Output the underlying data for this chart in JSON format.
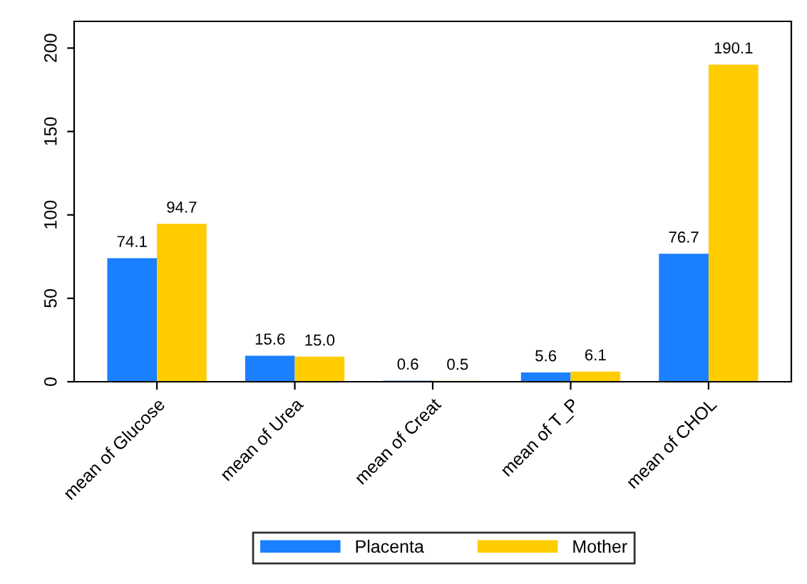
{
  "chart_data": {
    "type": "bar",
    "categories": [
      "mean of Glucose",
      "mean of Urea",
      "mean of Creat",
      "mean of T_P",
      "mean of CHOL"
    ],
    "series": [
      {
        "name": "Placenta",
        "color": "#1a80ff",
        "values": [
          74.1,
          15.6,
          0.6,
          5.6,
          76.7
        ],
        "value_labels": [
          "74.1",
          "15.6",
          "0.6",
          "5.6",
          "76.7"
        ]
      },
      {
        "name": "Mother",
        "color": "#ffcc00",
        "values": [
          94.7,
          15.0,
          0.5,
          6.1,
          190.1
        ],
        "value_labels": [
          "94.7",
          "15.0",
          "0.5",
          "6.1",
          "190.1"
        ]
      }
    ],
    "ylim": [
      0,
      216
    ],
    "yticks": [
      0,
      50,
      100,
      150,
      200
    ],
    "grid": false,
    "legend": "bottom"
  }
}
